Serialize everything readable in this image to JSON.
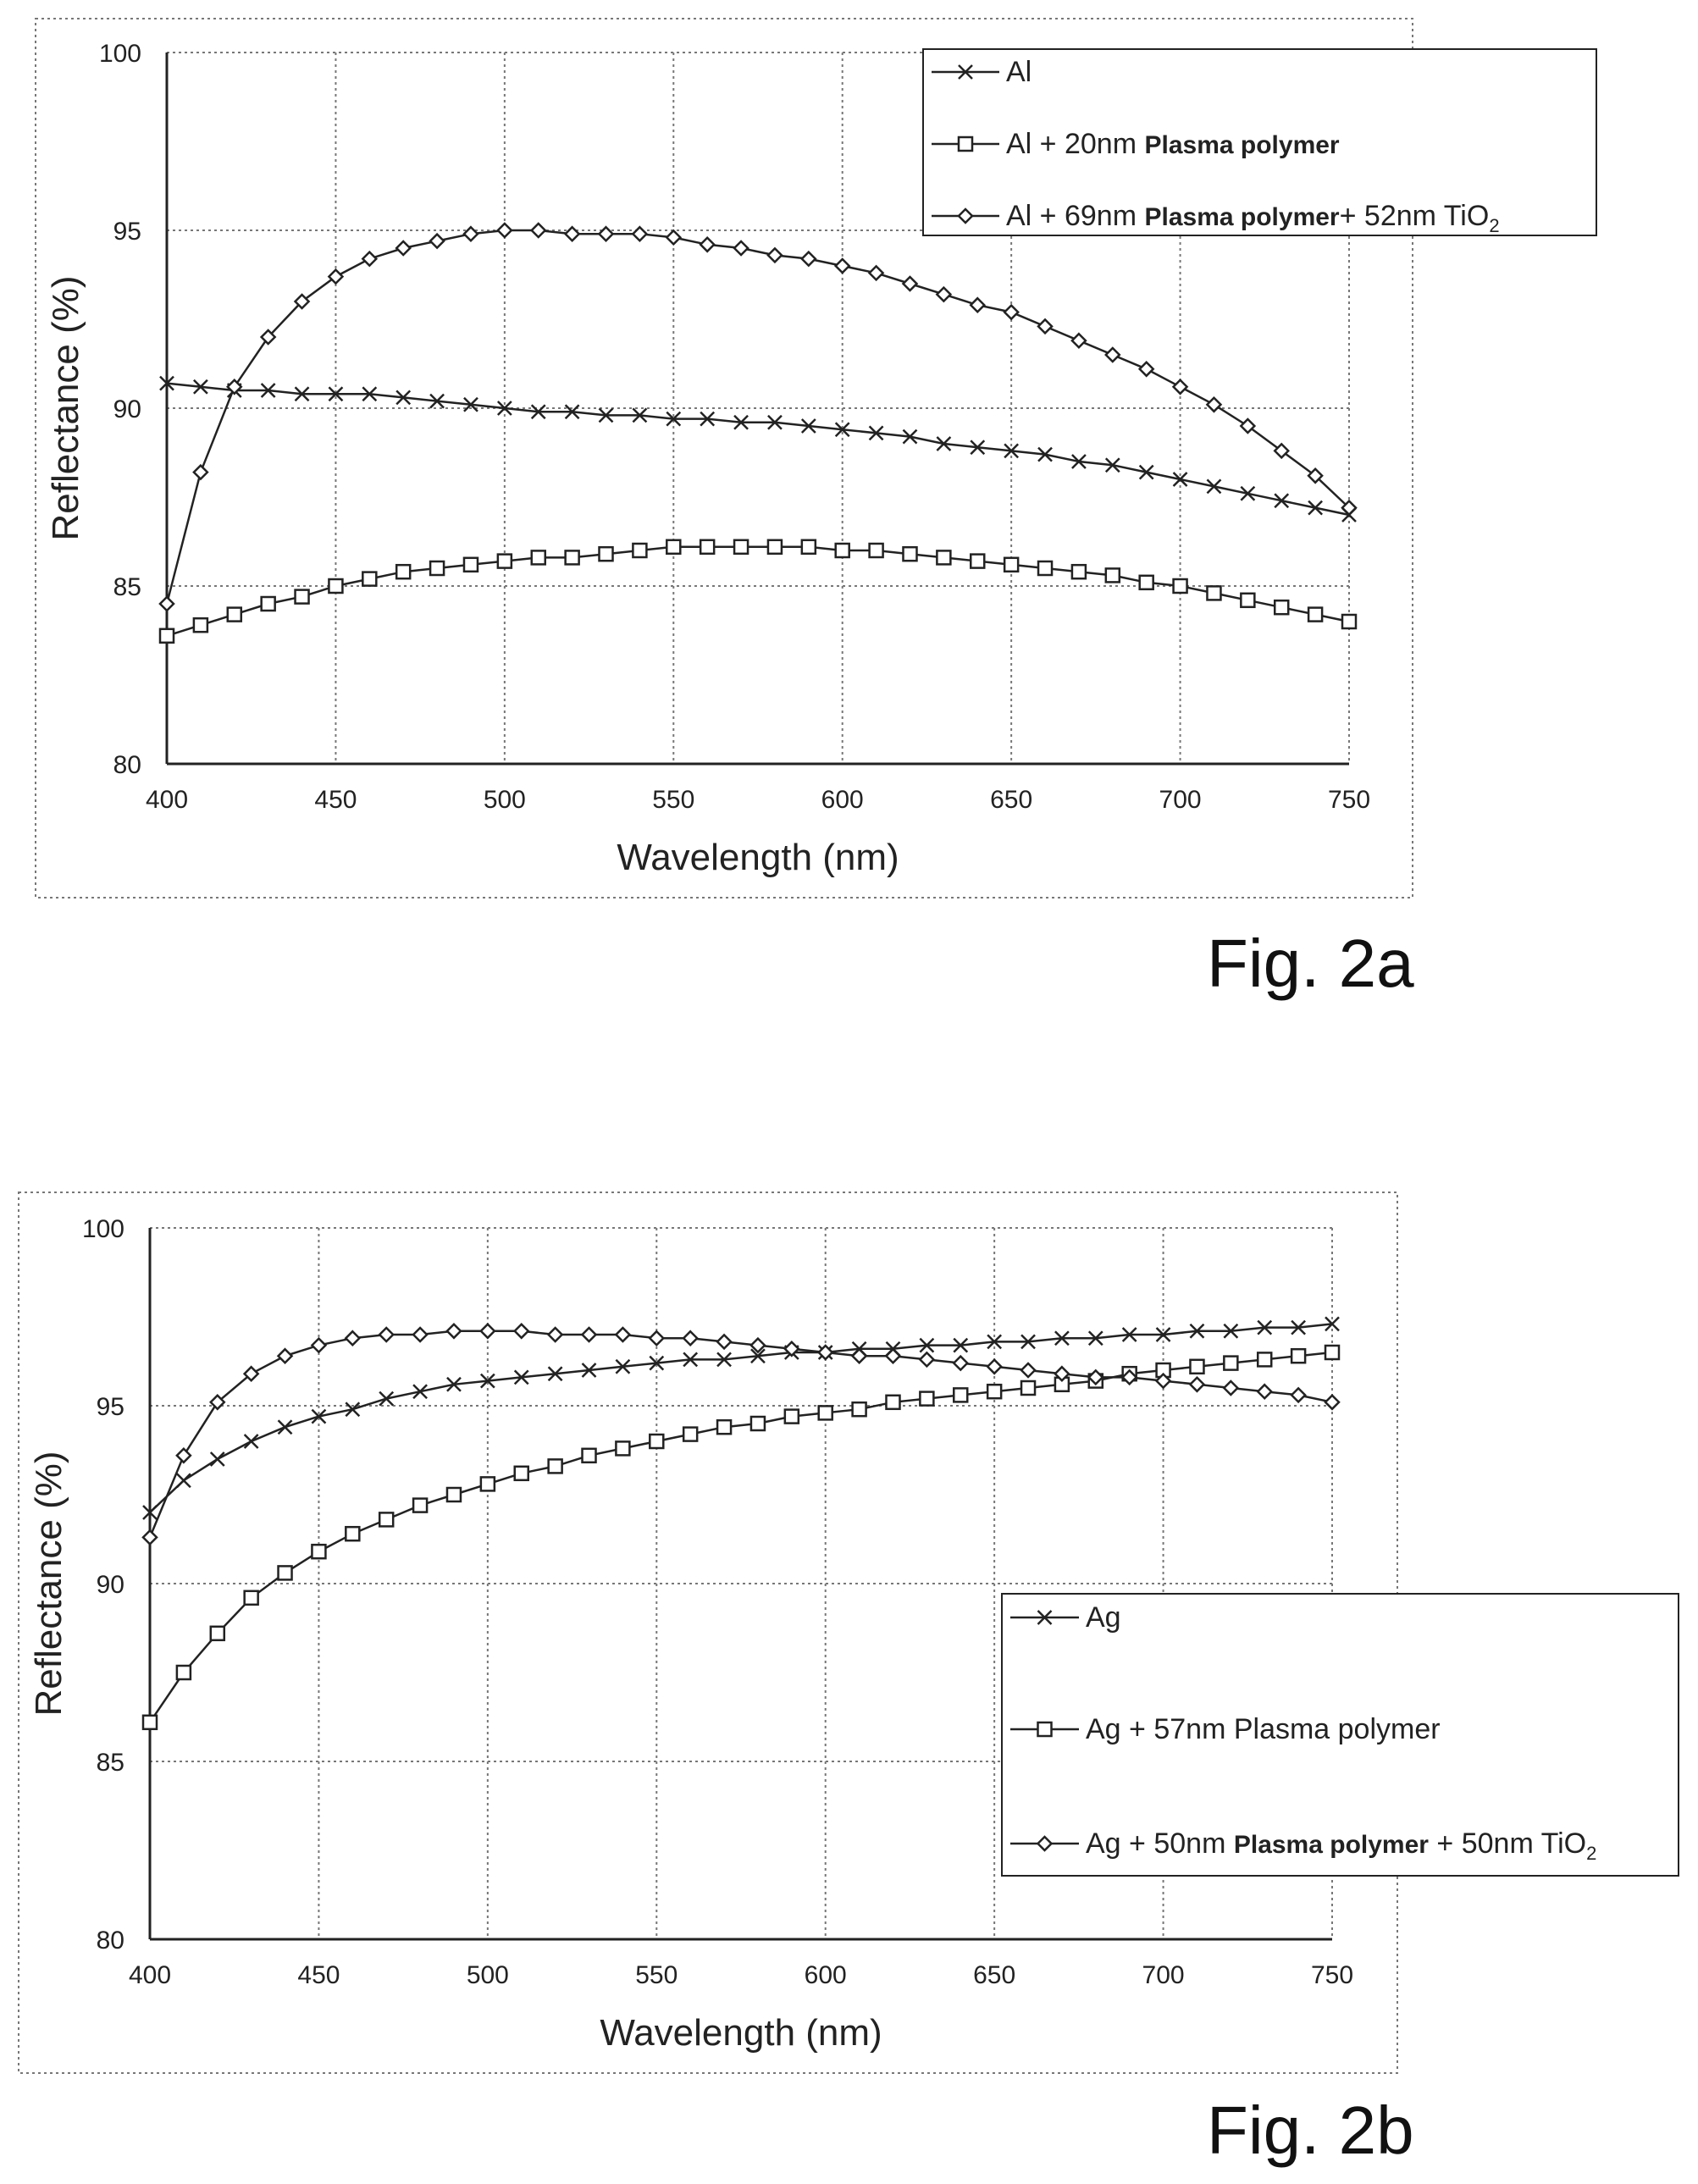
{
  "charts": [
    {
      "fig_label": "Fig. 2a",
      "chart_data": {
        "type": "line",
        "xlabel": "Wavelength (nm)",
        "ylabel": "Reflectance (%)",
        "xlim": [
          400,
          750
        ],
        "ylim": [
          80,
          100
        ],
        "xticks": [
          400,
          450,
          500,
          550,
          600,
          650,
          700,
          750
        ],
        "yticks": [
          80,
          85,
          90,
          95,
          100
        ],
        "grid": true,
        "legend_position": "top-right",
        "x": [
          400,
          410,
          420,
          430,
          440,
          450,
          460,
          470,
          480,
          490,
          500,
          510,
          520,
          530,
          540,
          550,
          560,
          570,
          580,
          590,
          600,
          610,
          620,
          630,
          640,
          650,
          660,
          670,
          680,
          690,
          700,
          710,
          720,
          730,
          740,
          750
        ],
        "series": [
          {
            "marker": "x",
            "legend": [
              {
                "text": "Al",
                "bold": false
              }
            ],
            "values": [
              90.7,
              90.6,
              90.5,
              90.5,
              90.4,
              90.4,
              90.4,
              90.3,
              90.2,
              90.1,
              90.0,
              89.9,
              89.9,
              89.8,
              89.8,
              89.7,
              89.7,
              89.6,
              89.6,
              89.5,
              89.4,
              89.3,
              89.2,
              89.0,
              88.9,
              88.8,
              88.7,
              88.5,
              88.4,
              88.2,
              88.0,
              87.8,
              87.6,
              87.4,
              87.2,
              87.0
            ]
          },
          {
            "marker": "square",
            "legend": [
              {
                "text": "Al + 20nm ",
                "bold": false
              },
              {
                "text": "Plasma polymer",
                "bold": true
              }
            ],
            "values": [
              83.6,
              83.9,
              84.2,
              84.5,
              84.7,
              85.0,
              85.2,
              85.4,
              85.5,
              85.6,
              85.7,
              85.8,
              85.8,
              85.9,
              86.0,
              86.1,
              86.1,
              86.1,
              86.1,
              86.1,
              86.0,
              86.0,
              85.9,
              85.8,
              85.7,
              85.6,
              85.5,
              85.4,
              85.3,
              85.1,
              85.0,
              84.8,
              84.6,
              84.4,
              84.2,
              84.0
            ]
          },
          {
            "marker": "diamond",
            "legend": [
              {
                "text": "Al + 69nm ",
                "bold": false
              },
              {
                "text": "Plasma polymer",
                "bold": true
              },
              {
                "text": "+ 52nm TiO",
                "bold": false
              },
              {
                "text": "2",
                "bold": false,
                "sub": true
              }
            ],
            "values": [
              84.5,
              88.2,
              90.6,
              92.0,
              93.0,
              93.7,
              94.2,
              94.5,
              94.7,
              94.9,
              95.0,
              95.0,
              94.9,
              94.9,
              94.9,
              94.8,
              94.6,
              94.5,
              94.3,
              94.2,
              94.0,
              93.8,
              93.5,
              93.2,
              92.9,
              92.7,
              92.3,
              91.9,
              91.5,
              91.1,
              90.6,
              90.1,
              89.5,
              88.8,
              88.1,
              87.2
            ]
          }
        ]
      }
    },
    {
      "fig_label": "Fig. 2b",
      "chart_data": {
        "type": "line",
        "xlabel": "Wavelength (nm)",
        "ylabel": "Reflectance (%)",
        "xlim": [
          400,
          750
        ],
        "ylim": [
          80,
          100
        ],
        "xticks": [
          400,
          450,
          500,
          550,
          600,
          650,
          700,
          750
        ],
        "yticks": [
          80,
          85,
          90,
          95,
          100
        ],
        "grid": true,
        "legend_position": "bottom-right",
        "x": [
          400,
          410,
          420,
          430,
          440,
          450,
          460,
          470,
          480,
          490,
          500,
          510,
          520,
          530,
          540,
          550,
          560,
          570,
          580,
          590,
          600,
          610,
          620,
          630,
          640,
          650,
          660,
          670,
          680,
          690,
          700,
          710,
          720,
          730,
          740,
          750
        ],
        "series": [
          {
            "marker": "x",
            "legend": [
              {
                "text": "Ag",
                "bold": false
              }
            ],
            "values": [
              92.0,
              92.9,
              93.5,
              94.0,
              94.4,
              94.7,
              94.9,
              95.2,
              95.4,
              95.6,
              95.7,
              95.8,
              95.9,
              96.0,
              96.1,
              96.2,
              96.3,
              96.3,
              96.4,
              96.5,
              96.5,
              96.6,
              96.6,
              96.7,
              96.7,
              96.8,
              96.8,
              96.9,
              96.9,
              97.0,
              97.0,
              97.1,
              97.1,
              97.2,
              97.2,
              97.3
            ]
          },
          {
            "marker": "square",
            "legend": [
              {
                "text": "Ag + 57nm  Plasma polymer",
                "bold": false
              }
            ],
            "values": [
              86.1,
              87.5,
              88.6,
              89.6,
              90.3,
              90.9,
              91.4,
              91.8,
              92.2,
              92.5,
              92.8,
              93.1,
              93.3,
              93.6,
              93.8,
              94.0,
              94.2,
              94.4,
              94.5,
              94.7,
              94.8,
              94.9,
              95.1,
              95.2,
              95.3,
              95.4,
              95.5,
              95.6,
              95.7,
              95.9,
              96.0,
              96.1,
              96.2,
              96.3,
              96.4,
              96.5
            ]
          },
          {
            "marker": "diamond",
            "legend": [
              {
                "text": "Ag + 50nm ",
                "bold": false
              },
              {
                "text": "Plasma polymer",
                "bold": true
              },
              {
                "text": " + 50nm TiO",
                "bold": false
              },
              {
                "text": "2",
                "bold": false,
                "sub": true
              }
            ],
            "values": [
              91.3,
              93.6,
              95.1,
              95.9,
              96.4,
              96.7,
              96.9,
              97.0,
              97.0,
              97.1,
              97.1,
              97.1,
              97.0,
              97.0,
              97.0,
              96.9,
              96.9,
              96.8,
              96.7,
              96.6,
              96.5,
              96.4,
              96.4,
              96.3,
              96.2,
              96.1,
              96.0,
              95.9,
              95.8,
              95.8,
              95.7,
              95.6,
              95.5,
              95.4,
              95.3,
              95.1
            ]
          }
        ]
      }
    }
  ]
}
